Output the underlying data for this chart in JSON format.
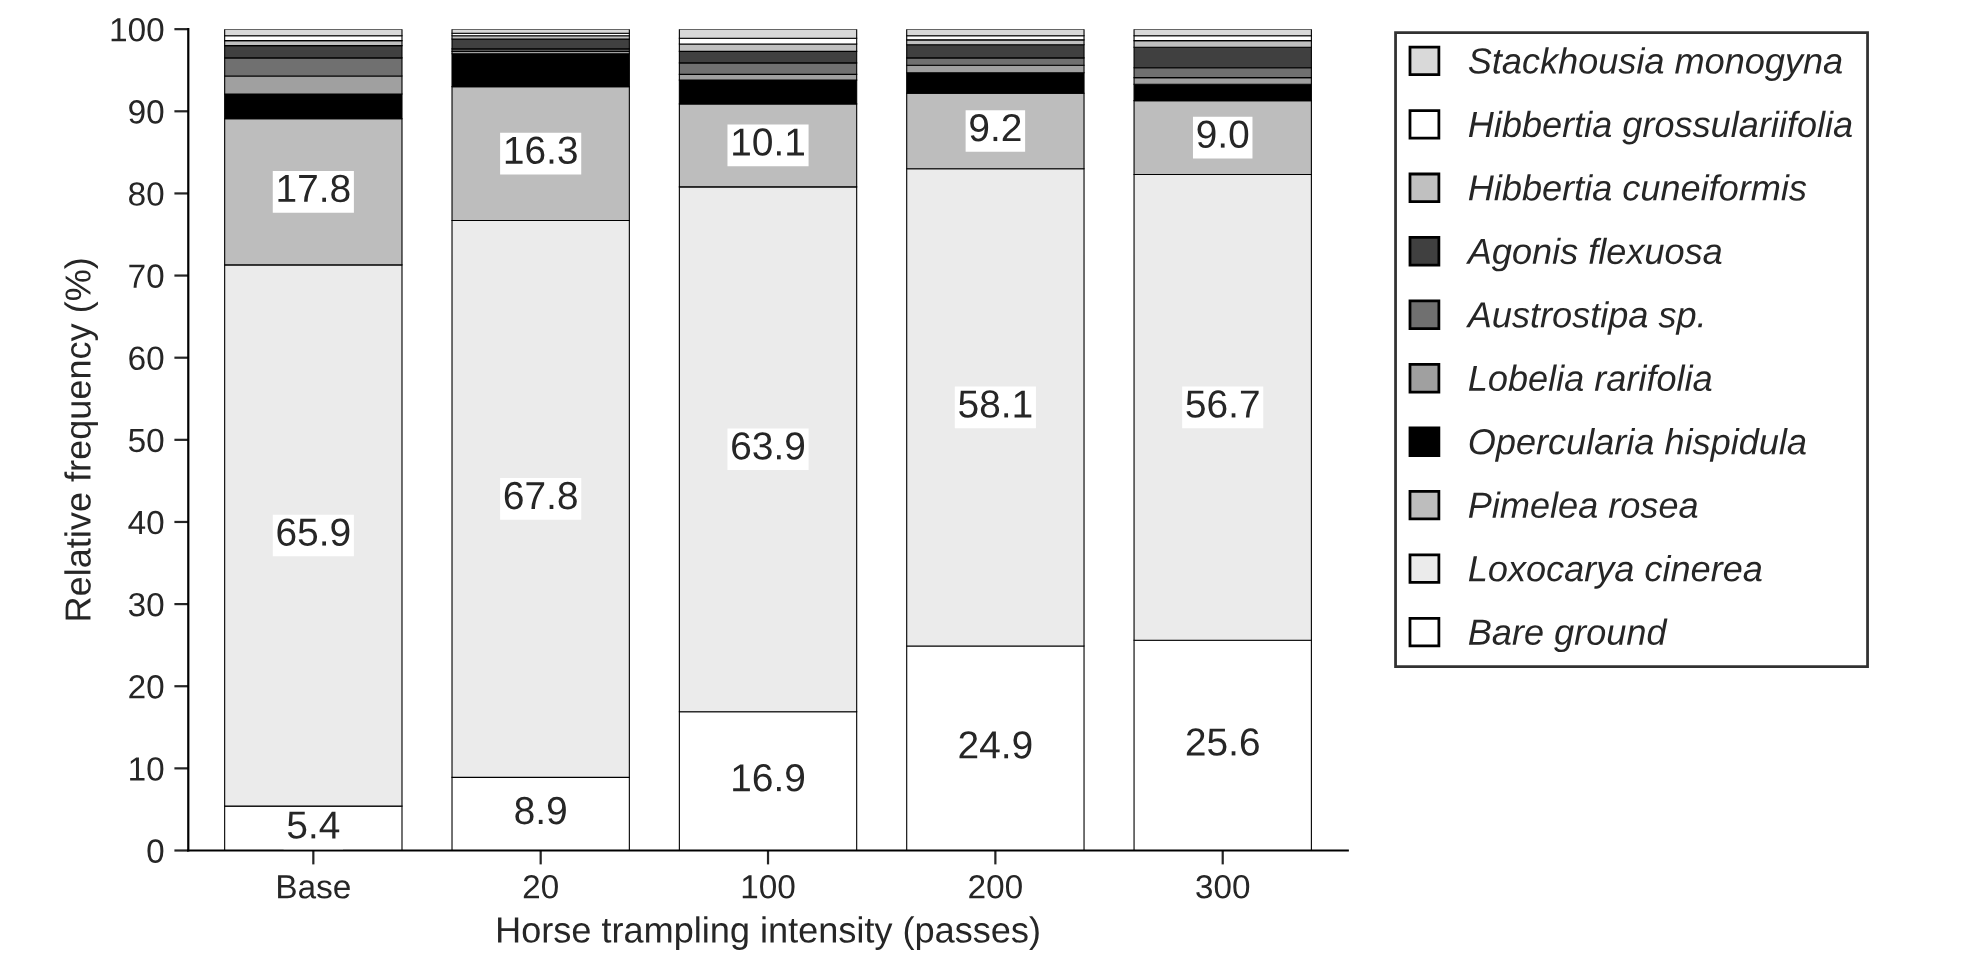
{
  "chart_data": {
    "type": "bar",
    "stacked": true,
    "xlabel": "Horse trampling intensity (passes)",
    "ylabel": "Relative frequency (%)",
    "categories": [
      "Base",
      "20",
      "100",
      "200",
      "300"
    ],
    "ylim": [
      0,
      100
    ],
    "yticks": [
      0,
      10,
      20,
      30,
      40,
      50,
      60,
      70,
      80,
      90,
      100
    ],
    "grid": false,
    "legend": "right",
    "series": [
      {
        "name": "Bare ground",
        "color": "#ffffff",
        "values": [
          5.4,
          8.9,
          16.9,
          24.9,
          25.6
        ],
        "value_labels": [
          "5.4",
          "8.9",
          "16.9",
          "24.9",
          "25.6"
        ]
      },
      {
        "name": "Loxocarya cinerea",
        "color": "#ebebeb",
        "values": [
          65.9,
          67.8,
          63.9,
          58.1,
          56.7
        ],
        "value_labels": [
          "65.9",
          "67.8",
          "63.9",
          "58.1",
          "56.7"
        ]
      },
      {
        "name": "Pimelea rosea",
        "color": "#bdbdbd",
        "values": [
          17.8,
          16.3,
          10.1,
          9.2,
          9.0
        ],
        "value_labels": [
          "17.8",
          "16.3",
          "10.1",
          "9.2",
          "9.0"
        ]
      },
      {
        "name": "Opercularia hispidula",
        "color": "#000000",
        "values": [
          3.0,
          4.0,
          2.9,
          2.5,
          2.0
        ]
      },
      {
        "name": "Lobelia rarifolia",
        "color": "#a0a0a0",
        "values": [
          2.2,
          0.3,
          0.7,
          0.9,
          0.8
        ]
      },
      {
        "name": "Austrostipa sp.",
        "color": "#707070",
        "values": [
          2.2,
          0.3,
          1.4,
          0.9,
          1.2
        ]
      },
      {
        "name": "Agonis flexuosa",
        "color": "#404040",
        "values": [
          1.5,
          1.2,
          1.4,
          1.6,
          2.5
        ]
      },
      {
        "name": "Hibbertia cuneiformis",
        "color": "#c0c0c0",
        "values": [
          0.6,
          0.4,
          0.9,
          0.6,
          0.8
        ]
      },
      {
        "name": "Hibbertia grossulariifolia",
        "color": "#ffffff",
        "values": [
          0.6,
          0.3,
          0.7,
          0.5,
          0.6
        ]
      },
      {
        "name": "Stackhousia monogyna",
        "color": "#d9d9d9",
        "values": [
          0.8,
          0.5,
          1.1,
          0.8,
          0.8
        ]
      }
    ]
  }
}
